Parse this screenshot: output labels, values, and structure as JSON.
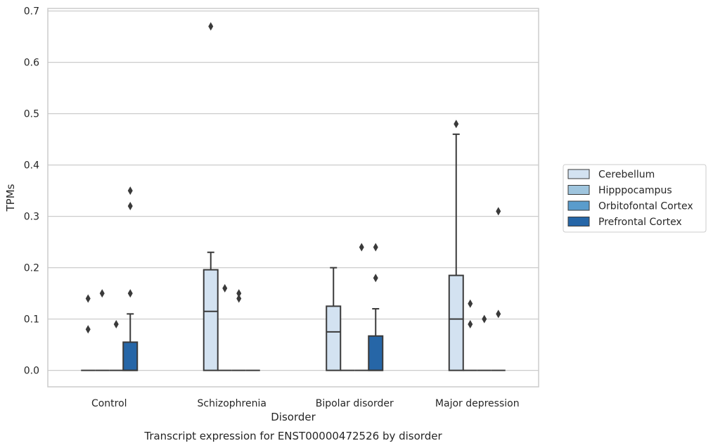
{
  "chart_data": {
    "type": "box",
    "xlabel": "Disorder",
    "ylabel": "TPMs",
    "caption": "Transcript expression for ENST00000472526 by disorder",
    "ylim": [
      -0.032,
      0.705
    ],
    "yticks": [
      "0.0",
      "0.1",
      "0.2",
      "0.3",
      "0.4",
      "0.5",
      "0.6",
      "0.7"
    ],
    "grid": "horizontal",
    "legend_position": "right",
    "categories": [
      "Control",
      "Schizophrenia",
      "Bipolar disorder",
      "Major depression"
    ],
    "series": [
      {
        "name": "Cerebellum",
        "color": "#d3e2f1",
        "boxes": [
          {
            "q1": 0,
            "median": 0,
            "q3": 0,
            "whislo": 0,
            "whishi": 0,
            "fliers": [
              0.08,
              0.14
            ]
          },
          {
            "q1": 0,
            "median": 0.115,
            "q3": 0.196,
            "whislo": 0,
            "whishi": 0.23,
            "fliers": [
              0.67
            ]
          },
          {
            "q1": 0,
            "median": 0.075,
            "q3": 0.125,
            "whislo": 0,
            "whishi": 0.2,
            "fliers": []
          },
          {
            "q1": 0,
            "median": 0.1,
            "q3": 0.185,
            "whislo": 0,
            "whishi": 0.46,
            "fliers": [
              0.48
            ]
          }
        ]
      },
      {
        "name": "Hipppocampus",
        "color": "#9fc5de",
        "boxes": [
          {
            "q1": 0,
            "median": 0,
            "q3": 0,
            "whislo": 0,
            "whishi": 0,
            "fliers": [
              0.15
            ]
          },
          {
            "q1": 0,
            "median": 0,
            "q3": 0,
            "whislo": 0,
            "whishi": 0,
            "fliers": [
              0.16
            ]
          },
          {
            "q1": 0,
            "median": 0,
            "q3": 0,
            "whislo": 0,
            "whishi": 0,
            "fliers": []
          },
          {
            "q1": 0,
            "median": 0,
            "q3": 0,
            "whislo": 0,
            "whishi": 0,
            "fliers": [
              0.09,
              0.13
            ]
          }
        ]
      },
      {
        "name": "Orbitofontal Cortex",
        "color": "#5a9ccc",
        "boxes": [
          {
            "q1": 0,
            "median": 0,
            "q3": 0,
            "whislo": 0,
            "whishi": 0,
            "fliers": [
              0.09
            ]
          },
          {
            "q1": 0,
            "median": 0,
            "q3": 0,
            "whislo": 0,
            "whishi": 0,
            "fliers": [
              0.14,
              0.15
            ]
          },
          {
            "q1": 0,
            "median": 0,
            "q3": 0,
            "whislo": 0,
            "whishi": 0,
            "fliers": [
              0.24
            ]
          },
          {
            "q1": 0,
            "median": 0,
            "q3": 0,
            "whislo": 0,
            "whishi": 0,
            "fliers": [
              0.1
            ]
          }
        ]
      },
      {
        "name": "Prefrontal Cortex",
        "color": "#2666a7",
        "boxes": [
          {
            "q1": 0,
            "median": 0,
            "q3": 0.055,
            "whislo": 0,
            "whishi": 0.11,
            "fliers": [
              0.15,
              0.32,
              0.35
            ]
          },
          {
            "q1": 0,
            "median": 0,
            "q3": 0,
            "whislo": 0,
            "whishi": 0,
            "fliers": []
          },
          {
            "q1": 0,
            "median": 0,
            "q3": 0.067,
            "whislo": 0,
            "whishi": 0.12,
            "fliers": [
              0.18,
              0.24
            ]
          },
          {
            "q1": 0,
            "median": 0,
            "q3": 0,
            "whislo": 0,
            "whishi": 0,
            "fliers": [
              0.11,
              0.31
            ]
          }
        ]
      }
    ]
  }
}
